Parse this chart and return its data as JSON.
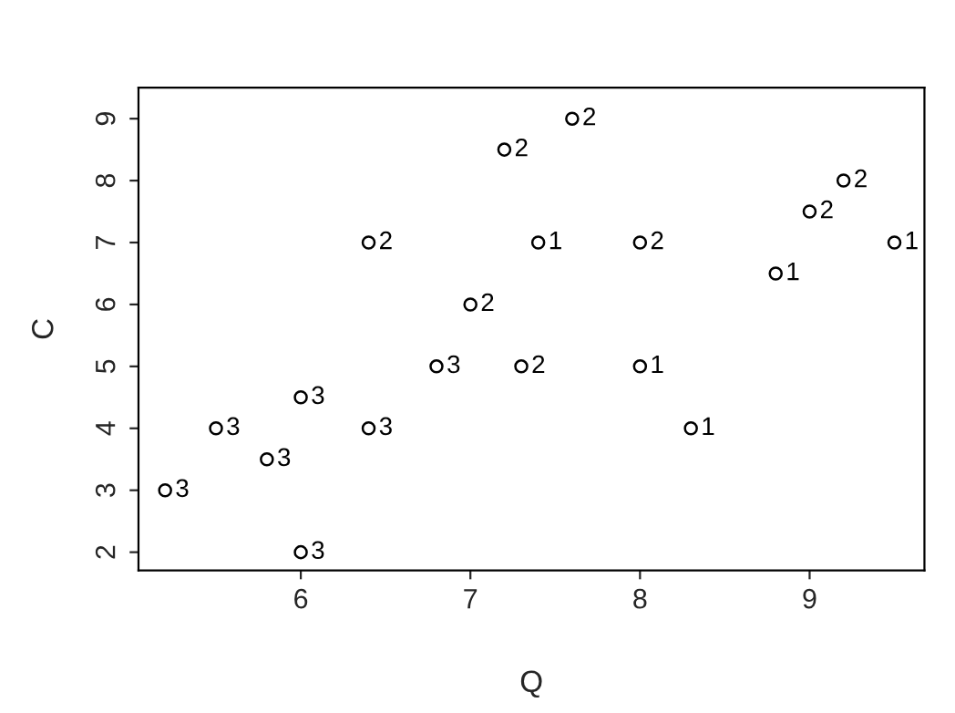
{
  "chart_data": {
    "type": "scatter",
    "xlabel": "Q",
    "ylabel": "C",
    "xlim": [
      5.043,
      9.677
    ],
    "ylim": [
      1.706,
      9.5
    ],
    "xticks": [
      6,
      7,
      8,
      9
    ],
    "yticks": [
      2,
      3,
      4,
      5,
      6,
      7,
      8,
      9
    ],
    "grid": false,
    "legend": false,
    "marker": "circle",
    "series": [
      {
        "name": "1",
        "color": "#000000",
        "x": [
          7.4,
          8.0,
          8.3,
          8.8,
          9.5
        ],
        "values": [
          7,
          5,
          4,
          6.5,
          7
        ]
      },
      {
        "name": "2",
        "color": "#000000",
        "x": [
          6.4,
          7.0,
          7.2,
          7.3,
          7.6,
          8.0,
          9.0,
          9.2
        ],
        "values": [
          7,
          6,
          8.5,
          5,
          9,
          7,
          7.5,
          8
        ]
      },
      {
        "name": "3",
        "color": "#000000",
        "x": [
          5.2,
          5.5,
          5.8,
          6.0,
          6.0,
          6.4,
          6.8
        ],
        "values": [
          3,
          4,
          3.5,
          4.5,
          2,
          4,
          5
        ]
      }
    ]
  }
}
